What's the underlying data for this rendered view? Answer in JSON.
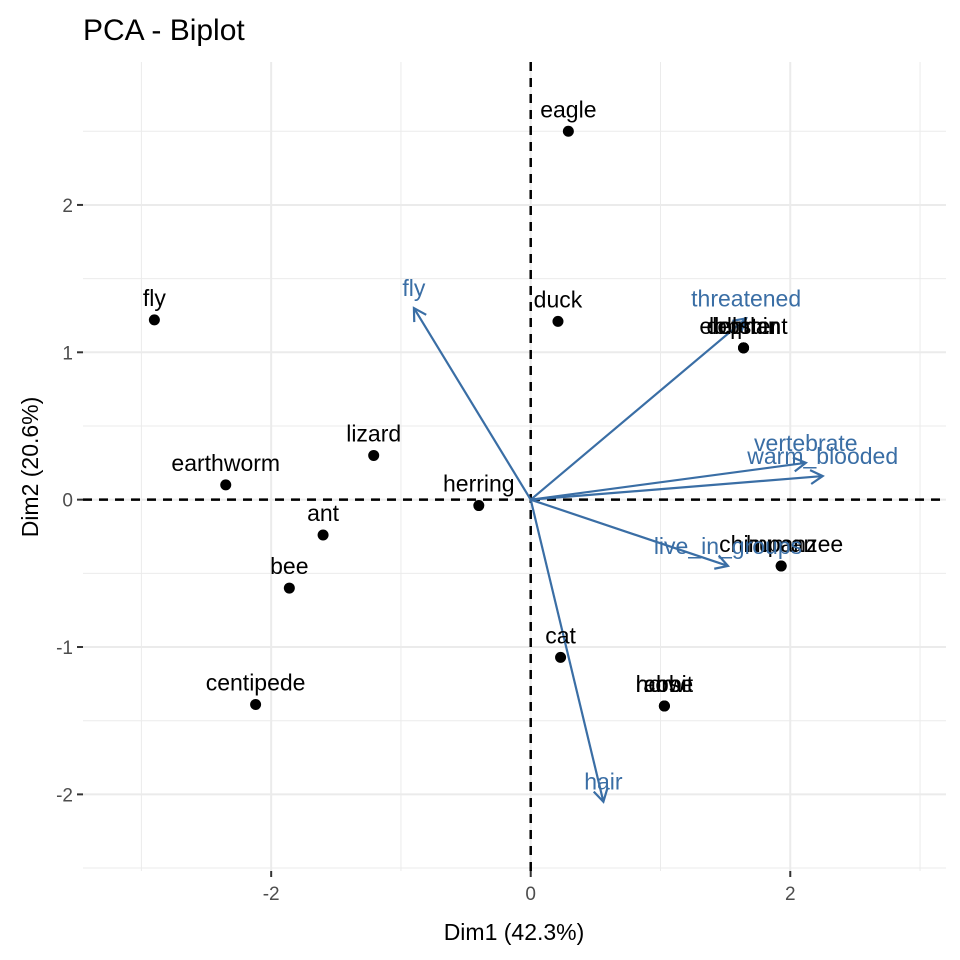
{
  "chart_data": {
    "type": "scatter",
    "title": "PCA - Biplot",
    "xlabel": "Dim1 (42.3%)",
    "ylabel": "Dim2 (20.6%)",
    "xlim": [
      -3.45,
      3.2
    ],
    "ylim": [
      -2.52,
      2.97
    ],
    "xticks": [
      -2,
      0,
      2
    ],
    "yticks": [
      -2,
      -1,
      0,
      1,
      2
    ],
    "xtick_labels": [
      "-2",
      "0",
      "2"
    ],
    "ytick_labels": [
      "-2",
      "-1",
      "0",
      "1",
      "2"
    ],
    "grid": true,
    "reference_lines": {
      "x": 0,
      "y": 0,
      "style": "dashed"
    },
    "colors": {
      "points": "#000000",
      "arrows": "#3a6ea5",
      "grid": "#ebebeb",
      "background": "#ffffff"
    },
    "points": [
      {
        "label": "eagle",
        "x": 0.29,
        "y": 2.5
      },
      {
        "label": "fly",
        "x": -2.9,
        "y": 1.22
      },
      {
        "label": "duck",
        "x": 0.21,
        "y": 1.21
      },
      {
        "label": "elephant",
        "x": 1.64,
        "y": 1.03
      },
      {
        "label": "lobster",
        "x": 1.64,
        "y": 1.03
      },
      {
        "label": "dolphin",
        "x": 1.64,
        "y": 1.03
      },
      {
        "label": "lizard",
        "x": -1.21,
        "y": 0.3
      },
      {
        "label": "earthworm",
        "x": -2.35,
        "y": 0.1
      },
      {
        "label": "herring",
        "x": -0.4,
        "y": -0.04
      },
      {
        "label": "ant",
        "x": -1.6,
        "y": -0.24
      },
      {
        "label": "chimpanzee",
        "x": 1.93,
        "y": -0.45
      },
      {
        "label": "human",
        "x": 1.93,
        "y": -0.45
      },
      {
        "label": "bee",
        "x": -1.86,
        "y": -0.6
      },
      {
        "label": "cat",
        "x": 0.23,
        "y": -1.07
      },
      {
        "label": "rabbit",
        "x": 1.03,
        "y": -1.4
      },
      {
        "label": "horse",
        "x": 1.03,
        "y": -1.4
      },
      {
        "label": "cow",
        "x": 1.03,
        "y": -1.4
      },
      {
        "label": "centipede",
        "x": -2.12,
        "y": -1.39
      }
    ],
    "variables": [
      {
        "label": "fly",
        "x": -0.9,
        "y": 1.3
      },
      {
        "label": "threatened",
        "x": 1.66,
        "y": 1.23
      },
      {
        "label": "vertebrate",
        "x": 2.12,
        "y": 0.25
      },
      {
        "label": "warm_blooded",
        "x": 2.25,
        "y": 0.16
      },
      {
        "label": "live_in_groups",
        "x": 1.52,
        "y": -0.45
      },
      {
        "label": "hair",
        "x": 0.56,
        "y": -2.05
      }
    ]
  }
}
